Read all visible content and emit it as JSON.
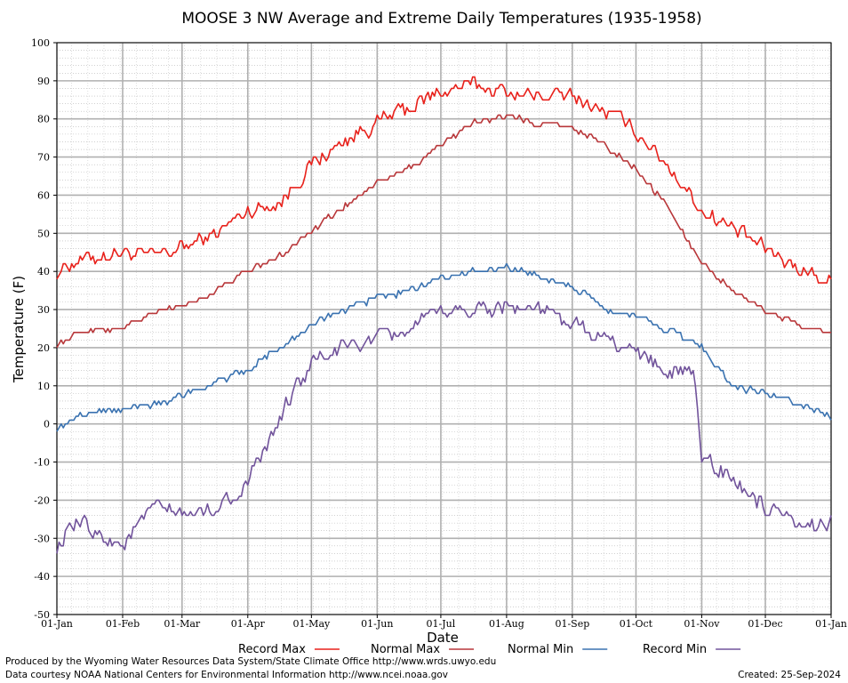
{
  "chart_data": {
    "type": "line",
    "title": "MOOSE 3 NW Average and Extreme Daily Temperatures (1935-1958)",
    "xlabel": "Date",
    "ylabel": "Temperature (F)",
    "ylim": [
      -50,
      100
    ],
    "y_ticks": [
      "100",
      "90",
      "80",
      "70",
      "60",
      "50",
      "40",
      "30",
      "20",
      "10",
      "0",
      "-10",
      "-20",
      "-30",
      "-40",
      "-50"
    ],
    "x_ticks": [
      "01-Jan",
      "01-Feb",
      "01-Mar",
      "01-Apr",
      "01-May",
      "01-Jun",
      "01-Jul",
      "01-Aug",
      "01-Sep",
      "01-Oct",
      "01-Nov",
      "01-Dec",
      "01-Jan"
    ],
    "x_tick_days": [
      0,
      31,
      59,
      90,
      120,
      151,
      181,
      212,
      243,
      273,
      304,
      334,
      365
    ],
    "grid": true,
    "legend_position": "bottom",
    "series": [
      {
        "name": "Record Max",
        "color": "#e8211b",
        "key_days": [
          0,
          10,
          20,
          31,
          45,
          59,
          75,
          90,
          105,
          120,
          135,
          151,
          166,
          181,
          196,
          212,
          227,
          243,
          258,
          273,
          288,
          304,
          319,
          334,
          350,
          365
        ],
        "values": [
          40,
          43,
          44,
          45,
          44,
          46,
          50,
          56,
          58,
          68,
          74,
          79,
          83,
          87,
          89,
          87,
          86,
          86,
          82,
          77,
          68,
          56,
          51,
          46,
          41,
          37
        ],
        "noise": 3.2
      },
      {
        "name": "Normal Max",
        "color": "#b8373a",
        "key_days": [
          0,
          15,
          31,
          45,
          59,
          75,
          90,
          105,
          120,
          135,
          151,
          166,
          181,
          196,
          212,
          227,
          243,
          258,
          273,
          288,
          304,
          319,
          334,
          350,
          365
        ],
        "values": [
          21,
          25,
          25,
          29,
          31,
          35,
          40,
          44,
          51,
          57,
          63,
          67,
          73,
          79,
          81,
          79,
          78,
          73,
          67,
          57,
          42,
          35,
          30,
          26,
          24
        ],
        "noise": 1.2
      },
      {
        "name": "Normal Min",
        "color": "#3a72b0",
        "key_days": [
          0,
          15,
          31,
          45,
          59,
          75,
          90,
          105,
          120,
          135,
          151,
          166,
          181,
          196,
          212,
          227,
          243,
          258,
          273,
          288,
          304,
          319,
          334,
          350,
          365
        ],
        "values": [
          -1,
          3,
          4,
          5,
          8,
          11,
          14,
          20,
          26,
          30,
          33,
          35,
          38,
          40,
          41,
          39,
          36,
          30,
          28,
          25,
          20,
          10,
          8,
          5,
          2
        ],
        "noise": 1.4
      },
      {
        "name": "Record Min",
        "color": "#71539b",
        "key_days": [
          0,
          10,
          20,
          31,
          45,
          59,
          75,
          90,
          100,
          110,
          120,
          135,
          151,
          166,
          181,
          196,
          212,
          227,
          243,
          258,
          273,
          288,
          300,
          304,
          319,
          334,
          350,
          365
        ],
        "values": [
          -32,
          -26,
          -29,
          -32,
          -22,
          -24,
          -22,
          -16,
          -5,
          7,
          16,
          20,
          22,
          25,
          29,
          30,
          31,
          30,
          26,
          22,
          19,
          14,
          13,
          -8,
          -15,
          -22,
          -28,
          -25
        ],
        "noise": 3.5
      }
    ]
  },
  "credits": {
    "line1": "Produced by the Wyoming Water Resources Data System/State Climate Office http://www.wrds.uwyo.edu",
    "line2": "Data courtesy NOAA National Centers for Environmental Information http://www.ncei.noaa.gov",
    "created": "Created:  25-Sep-2024"
  }
}
